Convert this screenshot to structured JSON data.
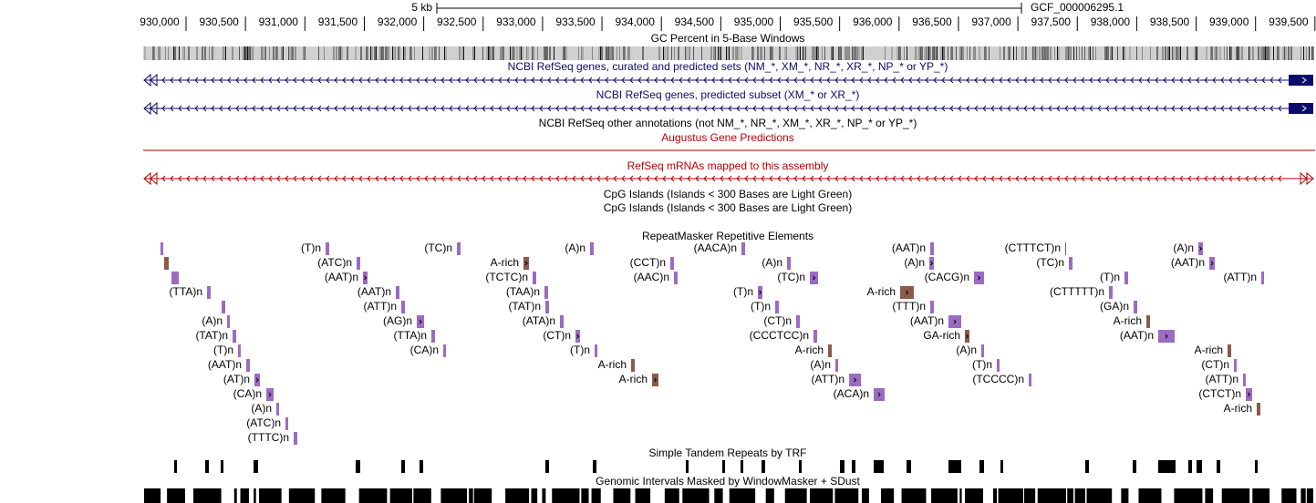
{
  "ruler": {
    "scale": "5 kb",
    "assembly": "GCF_000006295.1",
    "positions": [
      "930,000",
      "930,500",
      "931,000",
      "931,500",
      "932,000",
      "932,500",
      "933,000",
      "933,500",
      "934,000",
      "934,500",
      "935,000",
      "935,500",
      "936,000",
      "936,500",
      "937,000",
      "937,500",
      "938,000",
      "938,500",
      "939,000",
      "939,500"
    ]
  },
  "tracks": {
    "gc": "GC Percent in 5-Base Windows",
    "refseq_all": "NCBI RefSeq genes, curated and predicted sets (NM_*, XM_*, NR_*, XR_*, NP_* or YP_*)",
    "refseq_predicted": "NCBI RefSeq genes, predicted subset (XM_* or XR_*)",
    "refseq_other": "NCBI RefSeq other annotations (not NM_*, NR_*, XM_*, XR_*, NP_* or YP_*)",
    "augustus": "Augustus Gene Predictions",
    "refseq_mrna": "RefSeq mRNAs mapped to this assembly",
    "cpg_1": "CpG Islands (Islands < 300 Bases are Light Green)",
    "cpg_2": "CpG Islands (Islands < 300 Bases are Light Green)",
    "repeatmasker": "RepeatMasker Repetitive Elements",
    "trf": "Simple Tandem Repeats by TRF",
    "windowmasker": "Genomic Intervals Masked by WindowMasker + SDust"
  },
  "repeats": [
    "(T)n",
    "(TC)n",
    "(A)n",
    "(AACA)n",
    "(AAT)n",
    "(CTTTCT)n",
    "(A)n",
    "(ATC)n",
    "A-rich",
    "(CCT)n",
    "(A)n",
    "(A)n",
    "(TC)n",
    "(AAT)n",
    "(AAT)n",
    "(TCTC)n",
    "(AAC)n",
    "(TC)n",
    "(CACG)n",
    "(T)n",
    "(ATT)n",
    "(TTA)n",
    "(AAT)n",
    "(TAA)n",
    "(T)n",
    "A-rich",
    "(CTTTTT)n",
    "(ATT)n",
    "(TAT)n",
    "(T)n",
    "(TTT)n",
    "(GA)n",
    "(A)n",
    "(AG)n",
    "(ATA)n",
    "(CT)n",
    "(AAT)n",
    "A-rich",
    "(TAT)n",
    "(TTA)n",
    "(CT)n",
    "(CCCTCC)n",
    "GA-rich",
    "(AAT)n",
    "(T)n",
    "(CA)n",
    "(T)n",
    "A-rich",
    "(A)n",
    "A-rich",
    "(AAT)n",
    "A-rich",
    "(A)n",
    "(T)n",
    "(CT)n",
    "(AT)n",
    "A-rich",
    "(ATT)n",
    "(TCCCC)n",
    "(ATT)n",
    "(CA)n",
    "(ACA)n",
    "(CTCT)n",
    "(A)n",
    "A-rich",
    "(ATC)n",
    "(TTTC)n"
  ]
}
